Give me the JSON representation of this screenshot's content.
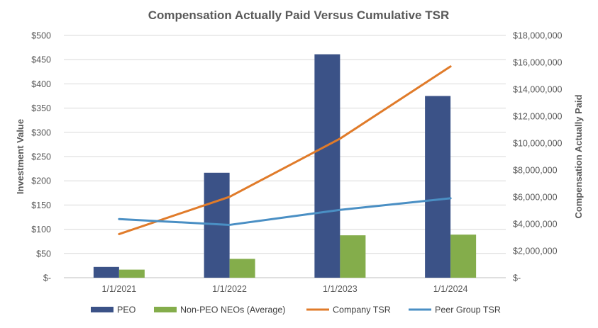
{
  "chart_data": {
    "type": "bar+line",
    "title": "Compensation Actually Paid Versus Cumulative TSR",
    "categories": [
      "1/1/2021",
      "1/1/2022",
      "1/1/2023",
      "1/1/2024"
    ],
    "y_left": {
      "label": "Investment Value",
      "range": [
        0,
        500
      ],
      "ticks": [
        0,
        50,
        100,
        150,
        200,
        250,
        300,
        350,
        400,
        450,
        500
      ],
      "tick_labels": [
        "$-",
        "$50",
        "$100",
        "$150",
        "$200",
        "$250",
        "$300",
        "$350",
        "$400",
        "$450",
        "$500"
      ]
    },
    "y_right": {
      "label": "Compensation Actually Paid",
      "range": [
        0,
        18000000
      ],
      "ticks": [
        0,
        2000000,
        4000000,
        6000000,
        8000000,
        10000000,
        12000000,
        14000000,
        16000000,
        18000000
      ],
      "tick_labels": [
        "$-",
        "$2,000,000",
        "$4,000,000",
        "$6,000,000",
        "$8,000,000",
        "$10,000,000",
        "$12,000,000",
        "$14,000,000",
        "$16,000,000",
        "$18,000,000"
      ]
    },
    "bar_series": [
      {
        "name": "PEO",
        "axis": "right",
        "color": "#3b5287",
        "values": [
          800000,
          7800000,
          16600000,
          13500000
        ]
      },
      {
        "name": "Non-PEO NEOs (Average)",
        "axis": "right",
        "color": "#84ad4b",
        "values": [
          600000,
          1400000,
          3150000,
          3200000
        ]
      }
    ],
    "line_series": [
      {
        "name": "Company TSR",
        "axis": "left",
        "color": "#e07b2a",
        "values": [
          90,
          167,
          287,
          436
        ]
      },
      {
        "name": "Peer Group TSR",
        "axis": "left",
        "color": "#4a8fc4",
        "values": [
          121,
          109,
          140,
          164
        ]
      }
    ],
    "legend": [
      {
        "name": "PEO",
        "kind": "bar",
        "color": "#3b5287"
      },
      {
        "name": "Non-PEO NEOs (Average)",
        "kind": "bar",
        "color": "#84ad4b"
      },
      {
        "name": "Company TSR",
        "kind": "line",
        "color": "#e07b2a"
      },
      {
        "name": "Peer Group TSR",
        "kind": "line",
        "color": "#4a8fc4"
      }
    ],
    "legend_position": "bottom",
    "grid": true
  }
}
